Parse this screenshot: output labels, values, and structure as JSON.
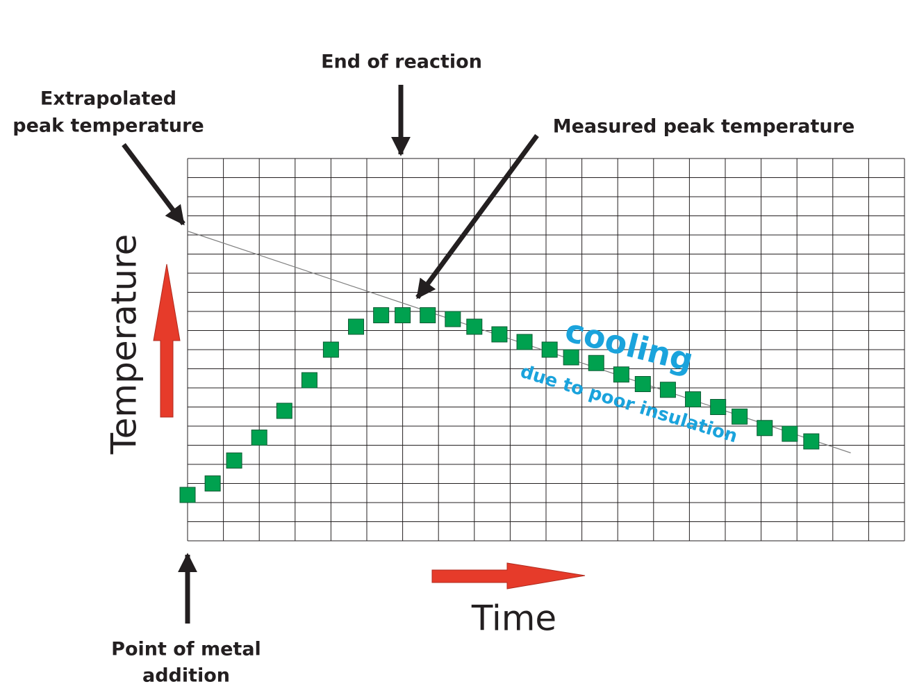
{
  "chart_data": {
    "type": "scatter",
    "x": [
      0,
      0.7,
      1.3,
      2.0,
      2.7,
      3.4,
      4.0,
      4.7,
      5.4,
      6.0,
      6.7,
      7.4,
      8.0,
      8.7,
      9.4,
      10.1,
      10.7,
      11.4,
      12.1,
      12.7,
      13.4,
      14.1,
      14.8,
      15.4,
      16.1,
      16.8,
      17.4
    ],
    "values": [
      2.4,
      3.0,
      4.2,
      5.4,
      6.8,
      8.4,
      10.0,
      11.2,
      11.8,
      11.8,
      11.8,
      11.6,
      11.2,
      10.8,
      10.4,
      10.0,
      9.6,
      9.3,
      8.7,
      8.2,
      7.9,
      7.4,
      7.0,
      6.5,
      5.9,
      5.6,
      5.2
    ],
    "color": "#00a14f",
    "trend_line": {
      "x": [
        0,
        18.5
      ],
      "values": [
        16.2,
        4.6
      ],
      "color": "#808080"
    },
    "xlim": [
      0,
      20
    ],
    "ylim": [
      0,
      20
    ],
    "xticks": [
      0,
      1,
      2,
      3,
      4,
      5,
      6,
      7,
      8,
      9,
      10,
      11,
      12,
      13,
      14,
      15,
      16,
      17,
      18,
      19,
      20
    ],
    "yticks": [
      0,
      1,
      2,
      3,
      4,
      5,
      6,
      7,
      8,
      9,
      10,
      11,
      12,
      13,
      14,
      15,
      16,
      17,
      18,
      19,
      20
    ],
    "grid": true,
    "x_label": "Time",
    "y_label": "Temperature",
    "annotations": {
      "end_of_reaction": "End of reaction",
      "extrapolated_peak": [
        "Extrapolated",
        "peak temperature"
      ],
      "measured_peak": "Measured peak temperature",
      "metal_addition": [
        "Point of metal",
        "addition"
      ],
      "cooling": "cooling",
      "cooling_reason": "due to poor insulation"
    }
  }
}
